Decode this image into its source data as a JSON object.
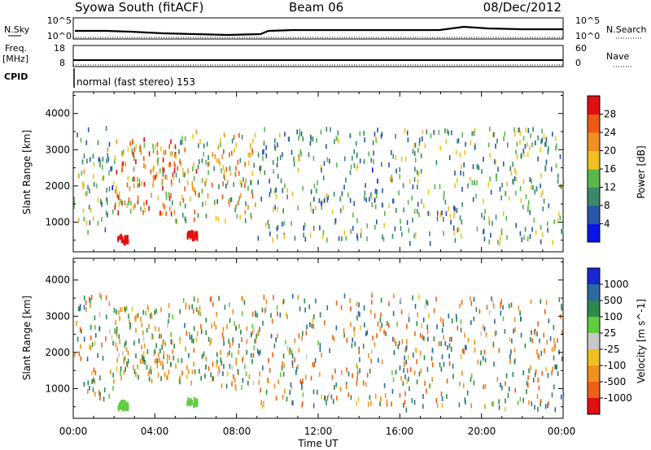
{
  "header": {
    "station": "Syowa South (fitACF)",
    "beam": "Beam 06",
    "date": "08/Dec/2012"
  },
  "top_panels": {
    "nsky_label": "N.Sky",
    "nsky_ticks": [
      "10^5",
      "10^0"
    ],
    "nsearch_label": "N.Search",
    "nsearch_ticks": [
      "10^5",
      "10^0"
    ],
    "freq_label": "Freq.",
    "freq_unit": "[MHz]",
    "freq_ticks": [
      "18",
      "8"
    ],
    "nave_label": "Nave",
    "nave_ticks": [
      "60",
      "0"
    ],
    "cpid_label": "CPID",
    "cpid_text": "normal (fast stereo) 153"
  },
  "axes": {
    "x_ticks": [
      "00:00",
      "04:00",
      "08:00",
      "12:00",
      "16:00",
      "20:00",
      "00:00"
    ],
    "x_label": "Time UT",
    "y_ticks": [
      "1000",
      "2000",
      "3000",
      "4000"
    ],
    "y_label": "Slant Range [km]"
  },
  "colorbars": {
    "power": {
      "label": "Power [dB]",
      "ticks": [
        "4",
        "8",
        "12",
        "16",
        "20",
        "24",
        "28"
      ],
      "colors": [
        "#0a14e6",
        "#2a55aa",
        "#3a8a6a",
        "#58b84a",
        "#f0c020",
        "#f09020",
        "#ee5a14",
        "#e01010"
      ]
    },
    "velocity": {
      "label": "Velocity [m s^-1]",
      "ticks": [
        "1000",
        "500",
        "100",
        "25",
        "-25",
        "-100",
        "-500",
        "-1000"
      ],
      "colors": [
        "#1828d0",
        "#2a6aa0",
        "#2e8a4a",
        "#60cc40",
        "#c8c8c8",
        "#f0c020",
        "#f09020",
        "#ee6018",
        "#e01010"
      ]
    }
  },
  "chart_data": [
    {
      "type": "scatter",
      "panel": "power",
      "xlabel": "Time UT",
      "ylabel": "Slant Range [km]",
      "xlim": [
        0,
        24
      ],
      "ylim": [
        180,
        4600
      ],
      "colorbar_label": "Power [dB]",
      "colorbar_range": [
        0,
        32
      ],
      "bands": [
        {
          "t_start": 0.0,
          "t_end": 2.0,
          "r_min": 700,
          "r_max": 3600,
          "density": 70,
          "value_mean": 12,
          "value_spread": 6
        },
        {
          "t_start": 2.0,
          "t_end": 5.0,
          "r_min": 1200,
          "r_max": 3300,
          "density": 140,
          "value_mean": 22,
          "value_spread": 7
        },
        {
          "t_start": 5.0,
          "t_end": 9.0,
          "r_min": 1000,
          "r_max": 3500,
          "density": 150,
          "value_mean": 18,
          "value_spread": 7
        },
        {
          "t_start": 9.0,
          "t_end": 16.0,
          "r_min": 500,
          "r_max": 3600,
          "density": 230,
          "value_mean": 11,
          "value_spread": 5
        },
        {
          "t_start": 16.0,
          "t_end": 24.0,
          "r_min": 400,
          "r_max": 3600,
          "density": 280,
          "value_mean": 12,
          "value_spread": 5
        }
      ],
      "clusters": [
        {
          "t_center": 2.4,
          "r_center": 520,
          "t_spread": 0.25,
          "r_spread": 120,
          "n": 30,
          "value": 28
        },
        {
          "t_center": 5.8,
          "r_center": 620,
          "t_spread": 0.25,
          "r_spread": 120,
          "n": 30,
          "value": 28
        }
      ]
    },
    {
      "type": "scatter",
      "panel": "velocity",
      "xlabel": "Time UT",
      "ylabel": "Slant Range [km]",
      "xlim": [
        0,
        24
      ],
      "ylim": [
        180,
        4600
      ],
      "colorbar_label": "Velocity [m s^-1]",
      "colorbar_range": [
        -1000,
        1000
      ],
      "bands": [
        {
          "t_start": 0.0,
          "t_end": 2.0,
          "r_min": 700,
          "r_max": 3600,
          "density": 70,
          "value_mean": 0,
          "value_spread": 500
        },
        {
          "t_start": 2.0,
          "t_end": 5.0,
          "r_min": 1200,
          "r_max": 3300,
          "density": 140,
          "value_mean": -80,
          "value_spread": 300
        },
        {
          "t_start": 5.0,
          "t_end": 9.0,
          "r_min": 1000,
          "r_max": 3500,
          "density": 150,
          "value_mean": -60,
          "value_spread": 400
        },
        {
          "t_start": 9.0,
          "t_end": 16.0,
          "r_min": 500,
          "r_max": 3600,
          "density": 230,
          "value_mean": 0,
          "value_spread": 600
        },
        {
          "t_start": 16.0,
          "t_end": 24.0,
          "r_min": 400,
          "r_max": 3600,
          "density": 280,
          "value_mean": 0,
          "value_spread": 600
        }
      ],
      "clusters": [
        {
          "t_center": 2.4,
          "r_center": 520,
          "t_spread": 0.25,
          "r_spread": 120,
          "n": 30,
          "value": 60
        },
        {
          "t_center": 5.8,
          "r_center": 620,
          "t_spread": 0.25,
          "r_spread": 120,
          "n": 25,
          "value": 60
        }
      ]
    }
  ]
}
